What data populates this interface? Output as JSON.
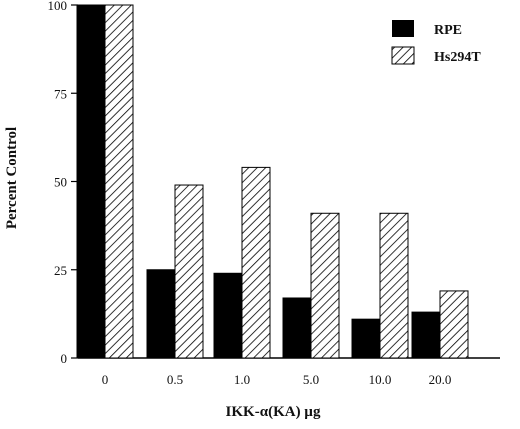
{
  "chart_data": {
    "type": "bar",
    "title": "",
    "xlabel": "IKK-α(KA) µg",
    "ylabel": "Percent Control",
    "categories": [
      "0",
      "0.5",
      "1.0",
      "5.0",
      "10.0",
      "20.0"
    ],
    "series": [
      {
        "name": "RPE",
        "values": [
          100,
          25,
          24,
          17,
          11,
          13
        ],
        "fill": "#000000"
      },
      {
        "name": "Hs294T",
        "values": [
          100,
          49,
          54,
          41,
          41,
          19
        ],
        "fill": "hatched"
      }
    ],
    "yticks": [
      0,
      25,
      50,
      75,
      100
    ],
    "ylim": [
      0,
      100
    ],
    "grid": false,
    "legend_position": "top-right"
  }
}
